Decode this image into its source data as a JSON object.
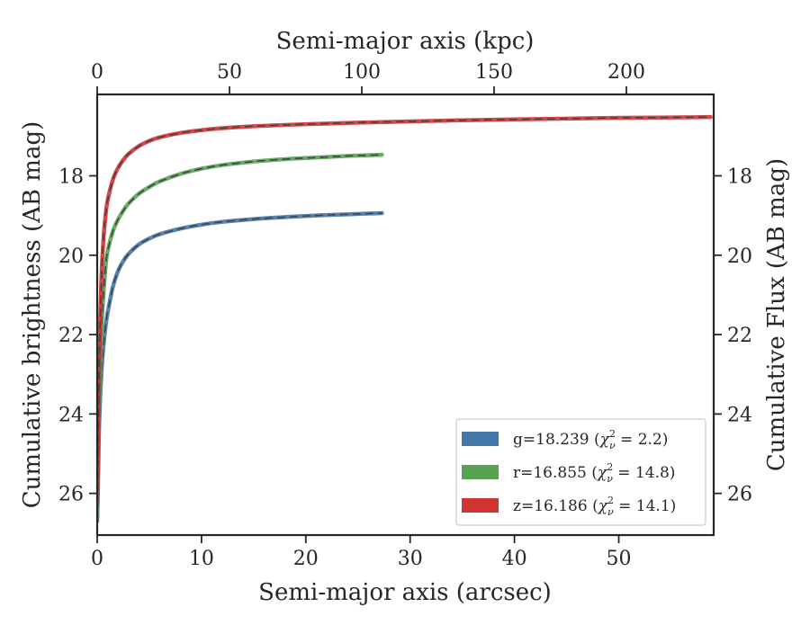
{
  "chart_data": {
    "type": "line",
    "title": "",
    "xlabel": "Semi-major axis (arcsec)",
    "ylabel": "Cumulative brightness (AB mag)",
    "top_xlabel": "Semi-major axis (kpc)",
    "right_ylabel": "Cumulative Flux (AB mag)",
    "xlim": [
      0,
      59.1
    ],
    "ylim": [
      27.05,
      15.95
    ],
    "y_inverted": true,
    "top_xlim": [
      0,
      233
    ],
    "x_ticks": [
      0,
      10,
      20,
      30,
      40,
      50
    ],
    "x_tick_labels": [
      "0",
      "10",
      "20",
      "30",
      "40",
      "50"
    ],
    "y_ticks": [
      18,
      20,
      22,
      24,
      26
    ],
    "y_tick_labels": [
      "18",
      "20",
      "22",
      "24",
      "26"
    ],
    "top_x_ticks": [
      0,
      50,
      100,
      150,
      200
    ],
    "top_x_tick_labels": [
      "0",
      "50",
      "100",
      "150",
      "200"
    ],
    "grid": false,
    "legend_position": "lower-right",
    "series": [
      {
        "name": "g=18.239 ($\\chi^2_\\nu = 2.2$)",
        "label_main": "g=18.239 (",
        "label_chi": "χ",
        "label_sup": "2",
        "label_sub": "ν",
        "label_tail": " = 2.2)",
        "color": "#4377a8",
        "x": [
          0,
          0.1,
          0.2,
          0.4,
          0.6,
          0.8,
          1,
          1.5,
          2,
          2.5,
          3,
          4,
          5,
          6,
          8,
          10,
          12,
          15,
          18,
          21,
          24,
          27.3
        ],
        "y": [
          26.7,
          25.5,
          24.2,
          23.0,
          22.3,
          21.8,
          21.45,
          20.8,
          20.4,
          20.15,
          19.97,
          19.73,
          19.58,
          19.47,
          19.33,
          19.23,
          19.16,
          19.09,
          19.04,
          19.0,
          18.97,
          18.94
        ]
      },
      {
        "name": "r=16.855 ($\\chi^2_\\nu = 14.8$)",
        "label_main": "r=16.855 (",
        "label_chi": "χ",
        "label_sup": "2",
        "label_sub": "ν",
        "label_tail": " = 14.8)",
        "color": "#58a352",
        "x": [
          0,
          0.1,
          0.2,
          0.4,
          0.6,
          0.8,
          1,
          1.5,
          2,
          2.5,
          3,
          4,
          5,
          6,
          8,
          10,
          12,
          15,
          18,
          21,
          24,
          27.3
        ],
        "y": [
          26.5,
          25.0,
          23.5,
          21.9,
          21.0,
          20.3,
          19.9,
          19.4,
          19.1,
          18.88,
          18.7,
          18.45,
          18.28,
          18.14,
          17.95,
          17.82,
          17.73,
          17.64,
          17.58,
          17.54,
          17.5,
          17.47
        ]
      },
      {
        "name": "z=16.186 ($\\chi^2_\\nu = 14.1$)",
        "label_main": "z=16.186 (",
        "label_chi": "χ",
        "label_sup": "2",
        "label_sub": "ν",
        "label_tail": " = 14.1)",
        "color": "#d23333",
        "x": [
          0,
          0.1,
          0.2,
          0.4,
          0.6,
          0.8,
          1,
          1.5,
          2,
          2.5,
          3,
          4,
          5,
          6,
          8,
          10,
          12,
          15,
          20,
          25,
          30,
          35,
          40,
          45,
          50,
          55,
          58.8
        ],
        "y": [
          26.3,
          24.5,
          22.6,
          20.6,
          19.6,
          19.0,
          18.62,
          18.1,
          17.8,
          17.6,
          17.45,
          17.25,
          17.12,
          17.03,
          16.92,
          16.85,
          16.8,
          16.75,
          16.7,
          16.66,
          16.63,
          16.6,
          16.58,
          16.56,
          16.54,
          16.53,
          16.52
        ]
      }
    ]
  }
}
